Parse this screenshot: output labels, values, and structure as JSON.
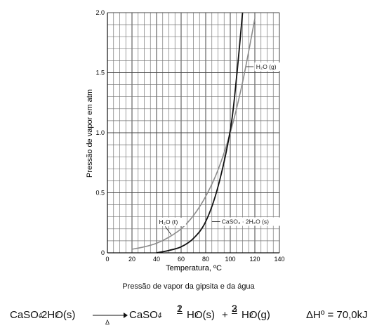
{
  "chart_data": {
    "type": "line",
    "xlabel": "Temperatura, ºC",
    "ylabel": "Pressão de vapor em atm",
    "xlim": [
      0,
      140
    ],
    "ylim": [
      0,
      2.0
    ],
    "x_ticks": [
      "0",
      "20",
      "40",
      "60",
      "80",
      "100",
      "120",
      "140"
    ],
    "y_ticks": [
      "0",
      "0.5",
      "1.0",
      "1.5",
      "2.0"
    ],
    "grid": true,
    "series": [
      {
        "name": "H₂O (g)",
        "color": "#8c8c8c",
        "x": [
          20,
          30,
          40,
          50,
          60,
          70,
          80,
          90,
          100,
          110,
          120
        ],
        "y": [
          0.03,
          0.05,
          0.08,
          0.13,
          0.2,
          0.31,
          0.47,
          0.69,
          1.0,
          1.42,
          1.95
        ]
      },
      {
        "name": "CaSO₄·2H₂O (s)",
        "color": "#111111",
        "x": [
          40,
          50,
          60,
          70,
          80,
          90,
          100,
          105,
          110
        ],
        "y": [
          0.0,
          0.02,
          0.05,
          0.12,
          0.26,
          0.55,
          1.02,
          1.45,
          2.0
        ]
      }
    ],
    "annotations": [
      {
        "text": "H₂O (g)",
        "points_to": "upper gray curve"
      },
      {
        "text": "H₂O (ℓ)",
        "points_to": "gray curve near 50 ºC"
      },
      {
        "text": "CaSO₄ · 2H₂O (s)",
        "points_to": "black curve near 85 ºC"
      }
    ]
  },
  "caption": "Pressão de vapor da gipsita e da água",
  "equation": {
    "reactant_formula": "CaSO",
    "reactant_sub": "4",
    "reactant_rest": ".2H",
    "reactant_sub2": "2",
    "reactant_tail": "O(s)",
    "condition": "Δ",
    "product_formula": "CaSO",
    "product_sub": "4",
    "product_dot": ".",
    "frac1_num": "1",
    "frac1_den": "2",
    "product_water": "H",
    "product_water_sub": "2",
    "product_water_tail": "O(s)",
    "plus": "+",
    "frac2_num": "3",
    "frac2_den": "2",
    "vapor": "H",
    "vapor_sub": "2",
    "vapor_tail": "O(g)",
    "enthalpy": "ΔHº = 70,0kJ"
  }
}
